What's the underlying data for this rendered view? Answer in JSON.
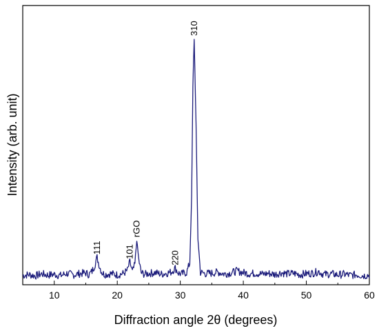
{
  "chart_data": {
    "type": "line",
    "xlabel": "Diffraction angle 2θ (degrees)",
    "ylabel": "Intensity (arb. unit)",
    "xlim": [
      5,
      60
    ],
    "x_ticks": [
      10,
      20,
      30,
      40,
      50,
      60
    ],
    "y_ticks": [],
    "grid": false,
    "line_color": "#1a1a7a",
    "series": [
      {
        "x": [
          5,
          6,
          7,
          8,
          9,
          10,
          11,
          12,
          13,
          14,
          15,
          15.5,
          16,
          16.4,
          16.8,
          17.2,
          17.6,
          18,
          19,
          20,
          21,
          21.6,
          22.0,
          22.4,
          22.8,
          23.1,
          23.4,
          23.8,
          24.4,
          25,
          26,
          27,
          28,
          28.6,
          29.2,
          29.7,
          30.2,
          31,
          31.5,
          31.8,
          32.0,
          32.2,
          32.5,
          32.8,
          33.2,
          34,
          35,
          36,
          37,
          38,
          39,
          40,
          41,
          42,
          43,
          44,
          45,
          46,
          47,
          48,
          49,
          50,
          51,
          52,
          52.5,
          53,
          54,
          55,
          56,
          57,
          58,
          59,
          60
        ],
        "y": [
          3,
          3.3,
          2.8,
          3.6,
          3.1,
          3.4,
          2.9,
          3.8,
          3.2,
          3.7,
          4.0,
          3.3,
          4.6,
          7.0,
          10.4,
          6.5,
          4.0,
          3.4,
          3.7,
          3.2,
          3.8,
          5.0,
          8.5,
          4.4,
          7.5,
          17.5,
          9.5,
          4.0,
          3.4,
          3.8,
          4.1,
          3.5,
          4.0,
          4.4,
          6.0,
          3.9,
          3.6,
          4.2,
          8.0,
          35.0,
          80.0,
          100.0,
          65.0,
          18.0,
          4.2,
          3.7,
          3.9,
          4.3,
          3.6,
          4.0,
          4.8,
          4.1,
          3.7,
          3.9,
          3.5,
          3.8,
          3.4,
          4.1,
          3.6,
          3.8,
          3.3,
          3.7,
          3.9,
          4.6,
          3.7,
          3.4,
          3.6,
          3.2,
          3.5,
          3.0,
          3.3,
          2.9,
          3.1
        ]
      }
    ],
    "annotations": [
      {
        "text": "111",
        "x": 16.8,
        "y": 10.4
      },
      {
        "text": "101",
        "x": 22.0,
        "y": 8.5
      },
      {
        "text": "rGO",
        "x": 23.1,
        "y": 17.5
      },
      {
        "text": "220",
        "x": 29.2,
        "y": 6.0
      },
      {
        "text": "310",
        "x": 32.2,
        "y": 100.0
      }
    ]
  }
}
